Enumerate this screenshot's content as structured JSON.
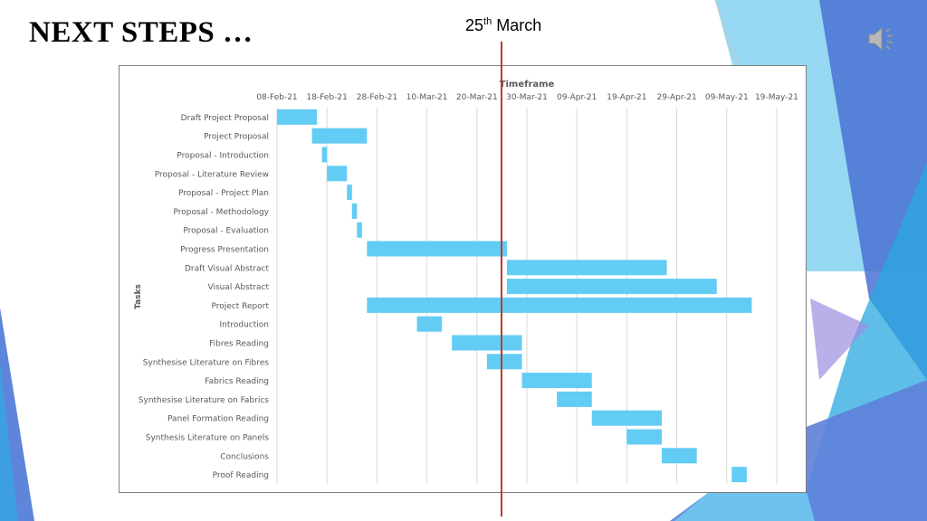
{
  "slide": {
    "title": "NEXT STEPS …",
    "marker_label_day": "25",
    "marker_label_suffix": "th",
    "marker_label_month": " March",
    "marker_date": "25-Mar-21",
    "marker_color": "#c0392b",
    "speaker_icon": "speaker-icon"
  },
  "theme": {
    "bar_color": "#63ccf4",
    "accent_blue": "#4a7fd4",
    "accent_cyan": "#29b6e8",
    "accent_purple": "#8e7fd8"
  },
  "chart_data": {
    "type": "gantt",
    "title": "Timeframe",
    "xlabel": "",
    "ylabel": "Tasks",
    "xlim": [
      "2021-02-08",
      "2021-05-26"
    ],
    "x_ticks": [
      "08-Feb-21",
      "18-Feb-21",
      "28-Feb-21",
      "10-Mar-21",
      "20-Mar-21",
      "30-Mar-21",
      "09-Apr-21",
      "19-Apr-21",
      "29-Apr-21",
      "09-May-21",
      "19-May-21"
    ],
    "grid": true,
    "tasks": [
      {
        "name": "Draft Project Proposal",
        "start": "2021-02-08",
        "end": "2021-02-16"
      },
      {
        "name": "Project Proposal ",
        "start": "2021-02-15",
        "end": "2021-02-26"
      },
      {
        "name": "Proposal - Introduction",
        "start": "2021-02-17",
        "end": "2021-02-18"
      },
      {
        "name": "Proposal - Literature Review",
        "start": "2021-02-18",
        "end": "2021-02-22"
      },
      {
        "name": "Proposal - Project Plan",
        "start": "2021-02-22",
        "end": "2021-02-23"
      },
      {
        "name": "Proposal - Methodology",
        "start": "2021-02-23",
        "end": "2021-02-24"
      },
      {
        "name": "Proposal - Evaluation ",
        "start": "2021-02-24",
        "end": "2021-02-25"
      },
      {
        "name": "Progress Presentation",
        "start": "2021-02-26",
        "end": "2021-03-26"
      },
      {
        "name": "Draft Visual Abstract ",
        "start": "2021-03-26",
        "end": "2021-04-27"
      },
      {
        "name": "Visual Abstract",
        "start": "2021-03-26",
        "end": "2021-05-07"
      },
      {
        "name": "Project Report",
        "start": "2021-02-26",
        "end": "2021-05-14"
      },
      {
        "name": "Introduction",
        "start": "2021-03-08",
        "end": "2021-03-13"
      },
      {
        "name": "Fibres Reading ",
        "start": "2021-03-15",
        "end": "2021-03-29"
      },
      {
        "name": "Synthesise Literature on Fibres",
        "start": "2021-03-22",
        "end": "2021-03-29"
      },
      {
        "name": "Fabrics Reading",
        "start": "2021-03-29",
        "end": "2021-04-12"
      },
      {
        "name": "Synthesise Literature on Fabrics",
        "start": "2021-04-05",
        "end": "2021-04-12"
      },
      {
        "name": "Panel Formation Reading",
        "start": "2021-04-12",
        "end": "2021-04-26"
      },
      {
        "name": "Synthesis Literature on Panels",
        "start": "2021-04-19",
        "end": "2021-04-26"
      },
      {
        "name": "Conclusions",
        "start": "2021-04-26",
        "end": "2021-05-03"
      },
      {
        "name": "Proof Reading",
        "start": "2021-05-10",
        "end": "2021-05-13"
      }
    ]
  }
}
